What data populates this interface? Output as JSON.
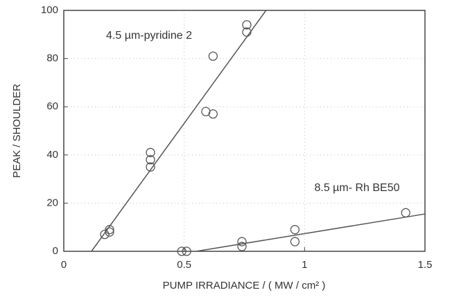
{
  "chart_data": {
    "type": "scatter",
    "xlabel": "PUMP IRRADIANCE  /  ( MW / cm² )",
    "ylabel": "PEAK / SHOULDER",
    "xlim": [
      0,
      1.5
    ],
    "xticks": [
      0,
      0.5,
      1,
      1.5
    ],
    "ylim": [
      0,
      100
    ],
    "yticks": [
      0,
      20,
      40,
      60,
      80,
      100
    ],
    "grid": true,
    "series": [
      {
        "name": "4.5 µm-pyridine 2",
        "color": "#555555",
        "x": [
          0.17,
          0.19,
          0.19,
          0.36,
          0.36,
          0.36,
          0.59,
          0.62,
          0.62,
          0.76,
          0.76
        ],
        "values": [
          7,
          8,
          9,
          41,
          38,
          35,
          58,
          57,
          81,
          94,
          91
        ],
        "fit": {
          "x": [
            0.115,
            0.84
          ],
          "values": [
            0,
            100
          ]
        }
      },
      {
        "name": "8.5 µm- Rh BE50",
        "color": "#555555",
        "x": [
          0.49,
          0.51,
          0.74,
          0.74,
          0.96,
          0.96,
          1.42
        ],
        "values": [
          0,
          0,
          4,
          2,
          9,
          4,
          16
        ],
        "fit": {
          "x": [
            0.55,
            1.5
          ],
          "values": [
            0,
            15.5
          ]
        }
      }
    ]
  }
}
